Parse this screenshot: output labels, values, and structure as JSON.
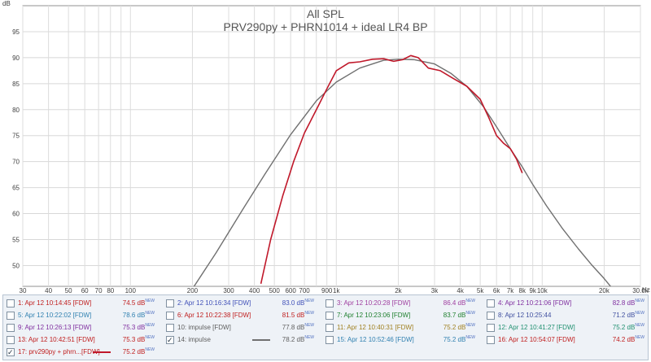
{
  "chart_data": {
    "type": "line",
    "title": "All SPL",
    "subtitle": "PRV290py + PHRN1014 + ideal LR4 BP",
    "ylabel": "dB",
    "xunit": "Hz",
    "xscale": "log",
    "xlim": [
      30,
      30000
    ],
    "ylim": [
      46,
      100
    ],
    "grid": true,
    "y_ticks": [
      50,
      55,
      60,
      65,
      70,
      75,
      80,
      85,
      90,
      95
    ],
    "x_ticks": [
      {
        "v": 30,
        "t": "30"
      },
      {
        "v": 40,
        "t": "40"
      },
      {
        "v": 50,
        "t": "50"
      },
      {
        "v": 60,
        "t": "60"
      },
      {
        "v": 70,
        "t": "70"
      },
      {
        "v": 80,
        "t": "80"
      },
      {
        "v": 100,
        "t": "100"
      },
      {
        "v": 200,
        "t": "200"
      },
      {
        "v": 300,
        "t": "300"
      },
      {
        "v": 400,
        "t": "400"
      },
      {
        "v": 500,
        "t": "500"
      },
      {
        "v": 600,
        "t": "600"
      },
      {
        "v": 700,
        "t": "700"
      },
      {
        "v": 900,
        "t": "900"
      },
      {
        "v": 1000,
        "t": "1k"
      },
      {
        "v": 2000,
        "t": "2k"
      },
      {
        "v": 3000,
        "t": "3k"
      },
      {
        "v": 4000,
        "t": "4k"
      },
      {
        "v": 5000,
        "t": "5k"
      },
      {
        "v": 6000,
        "t": "6k"
      },
      {
        "v": 7000,
        "t": "7k"
      },
      {
        "v": 8000,
        "t": "8k"
      },
      {
        "v": 9000,
        "t": "9k"
      },
      {
        "v": 10000,
        "t": "10k"
      },
      {
        "v": 20000,
        "t": "20k"
      },
      {
        "v": 30000,
        "t": "30.0k"
      }
    ],
    "series": [
      {
        "name": "14: impulse",
        "color": "#707070",
        "x": [
          200,
          260,
          350,
          450,
          600,
          800,
          1000,
          1300,
          1700,
          2000,
          2400,
          3000,
          3600,
          4300,
          5200,
          6000,
          7000,
          8000,
          9000,
          10500,
          12500,
          15000,
          17500,
          20000,
          22000
        ],
        "y": [
          45.5,
          52.4,
          60.7,
          67.6,
          75.2,
          81.7,
          85.3,
          88.0,
          89.5,
          89.7,
          89.6,
          88.8,
          87.0,
          84.5,
          80.5,
          76.7,
          72.5,
          69.0,
          65.6,
          61.5,
          57.2,
          53.2,
          50.0,
          47.5,
          45.5
        ]
      },
      {
        "name": "17: prv290py + phrn...[FDW]",
        "color": "#c0182a",
        "x": [
          430,
          480,
          550,
          620,
          700,
          800,
          900,
          1000,
          1150,
          1300,
          1500,
          1700,
          1900,
          2100,
          2300,
          2500,
          2800,
          3200,
          3700,
          4300,
          5000,
          5500,
          6000,
          6500,
          7000,
          7500,
          8000
        ],
        "y": [
          46.5,
          55.0,
          63.5,
          70.0,
          75.5,
          80.0,
          84.0,
          87.5,
          89.0,
          89.2,
          89.7,
          89.8,
          89.3,
          89.6,
          90.4,
          90.0,
          88.0,
          87.5,
          86.0,
          84.5,
          82.0,
          78.5,
          75.0,
          73.5,
          72.5,
          70.5,
          67.8
        ]
      }
    ]
  },
  "legend": [
    {
      "label": "1: Apr 12 10:14:45 [FDW]",
      "value": "74.5 dB",
      "sup": "NEW",
      "color": "#c02020",
      "checked": false
    },
    {
      "label": "2: Apr 12 10:16:34 [FDW]",
      "value": "83.0 dB",
      "sup": "NEW",
      "color": "#4050b8",
      "checked": false
    },
    {
      "label": "3: Apr 12 10:20:28 [FDW]",
      "value": "86.4 dB",
      "sup": "NEW",
      "color": "#a040a0",
      "checked": false
    },
    {
      "label": "4: Apr 12 10:21:06 [FDW]",
      "value": "82.8 dB",
      "sup": "NEW",
      "color": "#8030a0",
      "checked": false
    },
    {
      "label": "5: Apr 12 10:22:02 [FDW]",
      "value": "78.6 dB",
      "sup": "NEW",
      "color": "#3080b0",
      "checked": false
    },
    {
      "label": "6: Apr 12 10:22:38 [FDW]",
      "value": "81.5 dB",
      "sup": "NEW",
      "color": "#c02020",
      "checked": false
    },
    {
      "label": "7: Apr 12 10:23:06 [FDW]",
      "value": "83.7 dB",
      "sup": "NEW",
      "color": "#208030",
      "checked": false
    },
    {
      "label": "8: Apr 12 10:25:44",
      "value": "71.2 dB",
      "sup": "NEW",
      "color": "#4050a0",
      "checked": false
    },
    {
      "label": "9: Apr 12 10:26:13 [FDW]",
      "value": "75.3 dB",
      "sup": "NEW",
      "color": "#8030a0",
      "checked": false
    },
    {
      "label": "10: impulse [FDW]",
      "value": "77.8 dB",
      "sup": "NEW",
      "color": "#606060",
      "checked": false
    },
    {
      "label": "11: Apr 12 10:40:31 [FDW]",
      "value": "75.2 dB",
      "sup": "NEW",
      "color": "#a08020",
      "checked": false
    },
    {
      "label": "12: Apr 12 10:41:27 [FDW]",
      "value": "75.2 dB",
      "sup": "NEW",
      "color": "#209070",
      "checked": false
    },
    {
      "label": "13: Apr 12 10:42:51 [FDW]",
      "value": "75.3 dB",
      "sup": "NEW",
      "color": "#c02020",
      "checked": false
    },
    {
      "label": "14: impulse",
      "value": "78.2 dB",
      "sup": "NEW",
      "color": "#606060",
      "checked": true,
      "swatch": "#707070"
    },
    {
      "label": "15: Apr 12 10:52:46 [FDW]",
      "value": "75.2 dB",
      "sup": "NEW",
      "color": "#3080b0",
      "checked": false
    },
    {
      "label": "16: Apr 12 10:54:07 [FDW]",
      "value": "74.2 dB",
      "sup": "NEW",
      "color": "#c02020",
      "checked": false
    },
    {
      "label": "17: prv290py + phrn...[FDW]",
      "value": "75.2 dB",
      "sup": "NEW",
      "color": "#c02020",
      "checked": true,
      "swatch": "#c0182a"
    }
  ]
}
